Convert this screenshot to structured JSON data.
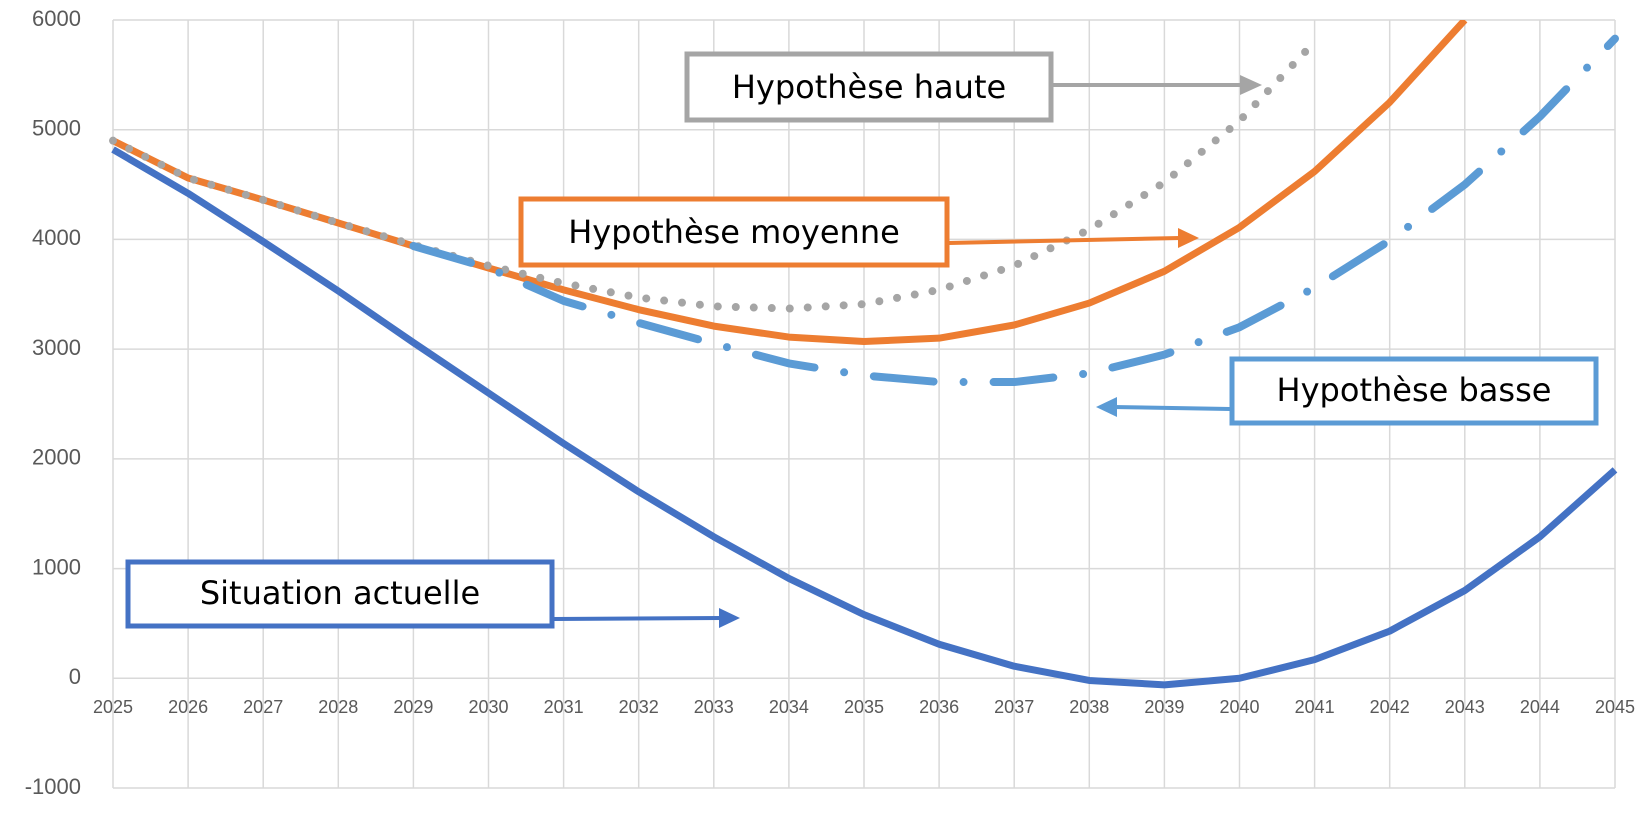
{
  "chart_data": {
    "type": "line",
    "categories": [
      "2025",
      "2026",
      "2027",
      "2028",
      "2029",
      "2030",
      "2031",
      "2032",
      "2033",
      "2034",
      "2035",
      "2036",
      "2037",
      "2038",
      "2039",
      "2040",
      "2041",
      "2042",
      "2043",
      "2044",
      "2045"
    ],
    "series": [
      {
        "name": "Situation actuelle",
        "color": "#4472c4",
        "style": "solid",
        "values": [
          4820,
          4420,
          3980,
          3530,
          3060,
          2600,
          2140,
          1700,
          1290,
          910,
          580,
          310,
          110,
          -20,
          -60,
          0,
          170,
          430,
          800,
          1290,
          1900
        ]
      },
      {
        "name": "Hypothèse moyenne",
        "color": "#ed7d31",
        "style": "solid",
        "values": [
          4900,
          4560,
          4360,
          4150,
          3940,
          3740,
          3540,
          3360,
          3210,
          3110,
          3070,
          3100,
          3220,
          3420,
          3710,
          4110,
          4620,
          5250,
          6000,
          null,
          null
        ]
      },
      {
        "name": "Hypothèse haute",
        "color": "#a5a5a5",
        "style": "dotted",
        "values": [
          4900,
          4560,
          4360,
          4150,
          3950,
          3760,
          3600,
          3470,
          3390,
          3370,
          3410,
          3540,
          3760,
          4090,
          4520,
          5080,
          5800,
          null,
          null,
          null,
          null
        ]
      },
      {
        "name": "Hypothèse basse",
        "color": "#5b9bd5",
        "style": "dashdot",
        "values": [
          null,
          null,
          null,
          null,
          3940,
          3740,
          3440,
          3240,
          3050,
          2870,
          2760,
          2700,
          2700,
          2780,
          2950,
          3200,
          3560,
          3990,
          4500,
          5120,
          5830
        ]
      }
    ],
    "ylim": [
      -1000,
      6000
    ],
    "yticks": [
      -1000,
      0,
      1000,
      2000,
      3000,
      4000,
      5000,
      6000
    ],
    "grid": true
  }
}
